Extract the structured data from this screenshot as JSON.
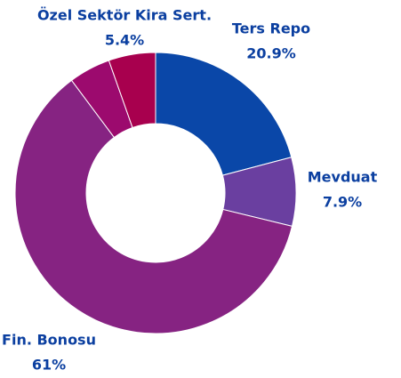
{
  "chart_data": {
    "type": "donut",
    "categories": [
      "Ters Repo",
      "Mevduat",
      "Fin. Bonosu",
      null,
      "Özel Sektör Kira Sert."
    ],
    "values": [
      20.9,
      7.9,
      61,
      4.8,
      5.4
    ],
    "value_labels": [
      "20.9%",
      "7.9%",
      "61%",
      null,
      "5.4%"
    ],
    "colors": [
      "#0a47a8",
      "#6a3fa0",
      "#862382",
      "#9c0a6e",
      "#a8004e"
    ]
  }
}
